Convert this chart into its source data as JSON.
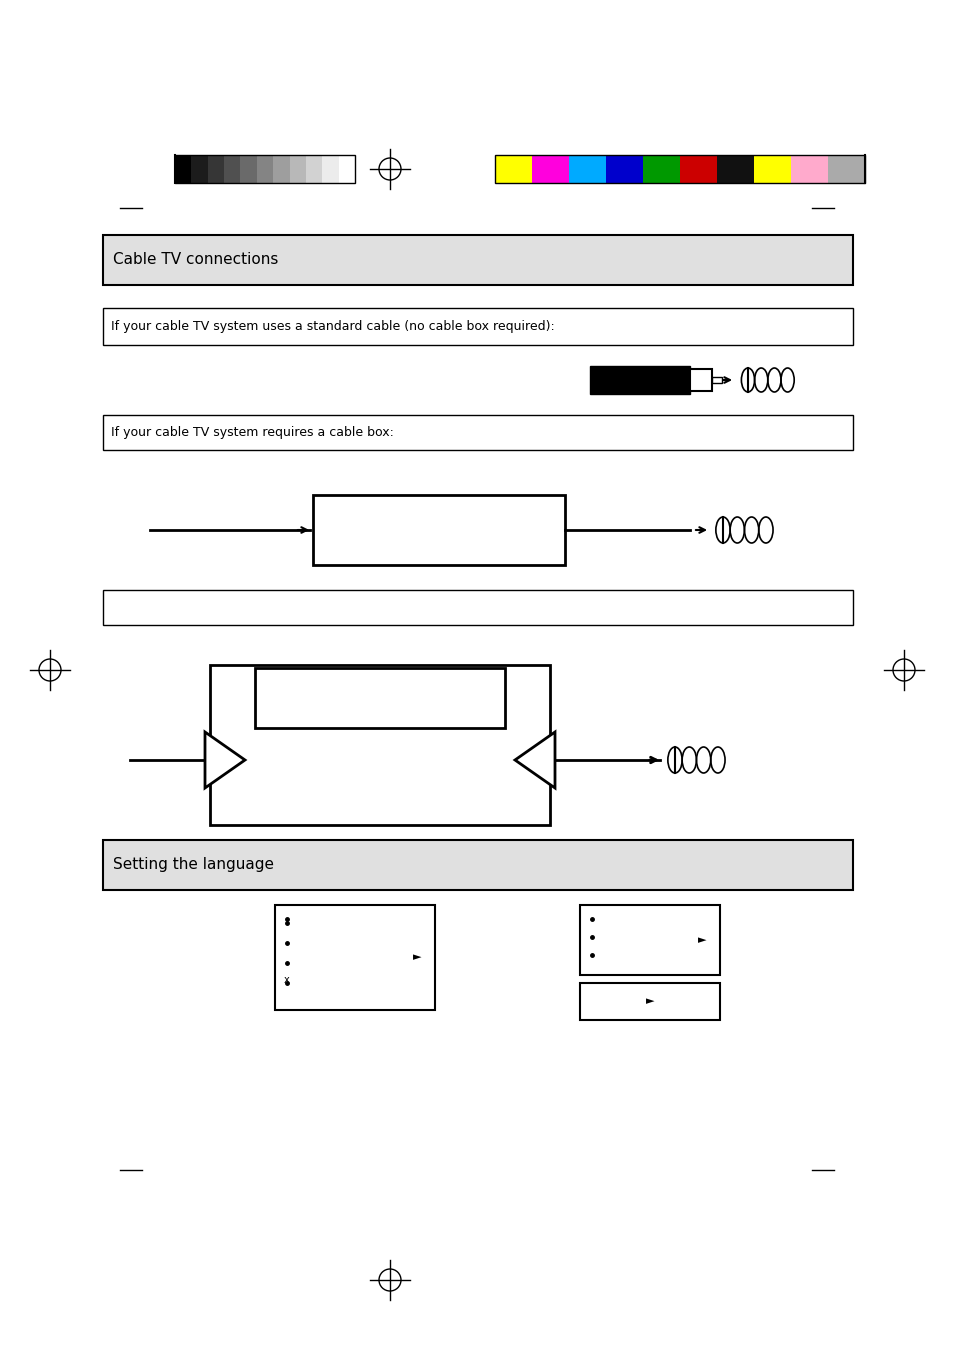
{
  "page_bg": "#ffffff",
  "color_bar_grayscale": [
    "#000000",
    "#1c1c1c",
    "#363636",
    "#505050",
    "#6a6a6a",
    "#848484",
    "#9e9e9e",
    "#b8b8b8",
    "#d2d2d2",
    "#ececec",
    "#ffffff"
  ],
  "color_bar_colors": [
    "#ffff00",
    "#ff00dd",
    "#00aaff",
    "#0000cc",
    "#009900",
    "#cc0000",
    "#111111",
    "#ffff00",
    "#ffaacc",
    "#aaaaaa"
  ],
  "gray_box_color": "#e0e0e0",
  "white_box_color": "#ffffff",
  "section1_label": "Cable TV connections",
  "section2_label": "Setting the language",
  "white_box1_label": "If your cable TV system uses a standard cable (no cable box required):",
  "white_box2_label": "If your cable TV system requires a cable box:"
}
